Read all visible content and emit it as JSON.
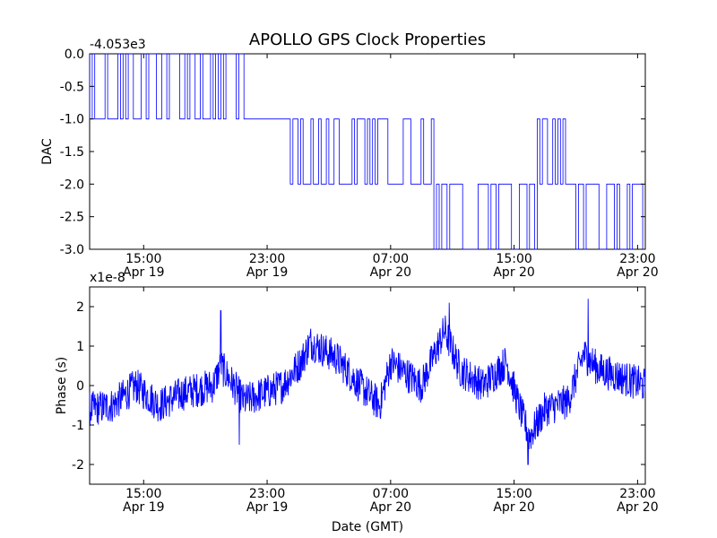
{
  "figure": {
    "title": "APOLLO GPS Clock Properties",
    "xlabel": "Date (GMT)",
    "line_color": "#0000ff"
  },
  "chart_data": [
    {
      "type": "line",
      "ylabel": "DAC",
      "offset_label": "-4.053e3",
      "xlim_hours": [
        11.5,
        47.5
      ],
      "ylim": [
        -3.0,
        0.0
      ],
      "yticks": [
        "0.0",
        "-0.5",
        "-1.0",
        "-1.5",
        "-2.0",
        "-2.5",
        "-3.0"
      ],
      "ytick_values": [
        0.0,
        -0.5,
        -1.0,
        -1.5,
        -2.0,
        -2.5,
        -3.0
      ],
      "xticks": [
        {
          "hours": 15,
          "time": "15:00",
          "date": "Apr 19"
        },
        {
          "hours": 23,
          "time": "23:00",
          "date": "Apr 19"
        },
        {
          "hours": 31,
          "time": "07:00",
          "date": "Apr 20"
        },
        {
          "hours": 39,
          "time": "15:00",
          "date": "Apr 20"
        },
        {
          "hours": 47,
          "time": "23:00",
          "date": "Apr 20"
        }
      ],
      "segments": [
        {
          "from_hour": 11.5,
          "to_hour": 18.5,
          "low": -1.0,
          "high": 0.0
        },
        {
          "from_hour": 18.5,
          "to_hour": 21.5,
          "low": -1.0,
          "high": 0.0
        },
        {
          "from_hour": 21.5,
          "to_hour": 24.5,
          "low": -1.0,
          "high": -1.0
        },
        {
          "from_hour": 24.5,
          "to_hour": 29.5,
          "low": -2.0,
          "high": -1.0
        },
        {
          "from_hour": 29.5,
          "to_hour": 33.8,
          "low": -2.0,
          "high": -1.0
        },
        {
          "from_hour": 33.8,
          "to_hour": 35.0,
          "low": -3.0,
          "high": -2.0
        },
        {
          "from_hour": 35.0,
          "to_hour": 40.5,
          "low": -3.0,
          "high": -2.0
        },
        {
          "from_hour": 40.5,
          "to_hour": 43.0,
          "low": -2.0,
          "high": -1.0
        },
        {
          "from_hour": 43.0,
          "to_hour": 47.5,
          "low": -3.0,
          "high": -2.0
        }
      ]
    },
    {
      "type": "line",
      "ylabel": "Phase (s)",
      "offset_label": "x1e-8",
      "xlim_hours": [
        11.5,
        47.5
      ],
      "ylim": [
        -2.5,
        2.5
      ],
      "yticks": [
        "2",
        "1",
        "0",
        "-1",
        "-2"
      ],
      "ytick_values": [
        2,
        1,
        0,
        -1,
        -2
      ],
      "xticks": [
        {
          "hours": 15,
          "time": "15:00",
          "date": "Apr 19"
        },
        {
          "hours": 23,
          "time": "23:00",
          "date": "Apr 19"
        },
        {
          "hours": 31,
          "time": "07:00",
          "date": "Apr 20"
        },
        {
          "hours": 39,
          "time": "15:00",
          "date": "Apr 20"
        },
        {
          "hours": 47,
          "time": "23:00",
          "date": "Apr 20"
        }
      ],
      "trend": [
        {
          "hours": 11.5,
          "value": -0.6
        },
        {
          "hours": 13.0,
          "value": -0.5
        },
        {
          "hours": 14.5,
          "value": 0.0
        },
        {
          "hours": 16.0,
          "value": -0.5
        },
        {
          "hours": 17.5,
          "value": -0.2
        },
        {
          "hours": 19.5,
          "value": 0.0
        },
        {
          "hours": 20.0,
          "value": 0.5
        },
        {
          "hours": 21.5,
          "value": -0.4
        },
        {
          "hours": 24.0,
          "value": 0.0
        },
        {
          "hours": 25.2,
          "value": 0.6
        },
        {
          "hours": 25.8,
          "value": 1.1
        },
        {
          "hours": 27.5,
          "value": 0.7
        },
        {
          "hours": 29.0,
          "value": 0.0
        },
        {
          "hours": 30.3,
          "value": -0.5
        },
        {
          "hours": 31.0,
          "value": 0.6
        },
        {
          "hours": 33.0,
          "value": 0.0
        },
        {
          "hours": 34.5,
          "value": 1.4
        },
        {
          "hours": 35.5,
          "value": 0.4
        },
        {
          "hours": 37.0,
          "value": 0.0
        },
        {
          "hours": 38.5,
          "value": 0.6
        },
        {
          "hours": 39.3,
          "value": -0.5
        },
        {
          "hours": 40.0,
          "value": -1.3
        },
        {
          "hours": 41.0,
          "value": -0.6
        },
        {
          "hours": 42.5,
          "value": -0.4
        },
        {
          "hours": 43.5,
          "value": 0.8
        },
        {
          "hours": 44.5,
          "value": 0.4
        },
        {
          "hours": 47.5,
          "value": 0.0
        }
      ],
      "noise_amplitude": 0.45,
      "spikes": [
        {
          "hours": 20.0,
          "value": 1.9
        },
        {
          "hours": 21.2,
          "value": -1.5
        },
        {
          "hours": 34.8,
          "value": 2.1
        },
        {
          "hours": 39.9,
          "value": -2.0
        },
        {
          "hours": 43.8,
          "value": 2.2
        }
      ]
    }
  ]
}
